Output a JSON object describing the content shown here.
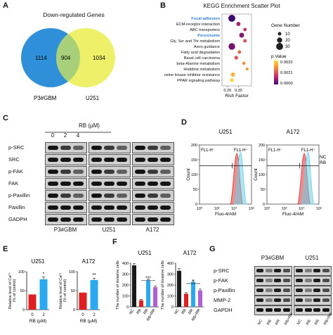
{
  "panels": {
    "A": {
      "label": "A",
      "title": "Down-regulated Genes",
      "left_count": "1114",
      "overlap_count": "904",
      "right_count": "1034",
      "left_name": "P3#GBM",
      "right_name": "U251",
      "left_color": "#2f8fd8",
      "right_color": "#eef06a",
      "overlap_color": "#a8d07a"
    },
    "B": {
      "label": "B",
      "title": "KEGG Enrichment Scatter Plot",
      "xlabel": "Rich Factor",
      "legend_size_title": "Gene Number",
      "legend_color_title": "p Value",
      "size_legend": [
        "10",
        "20",
        "30"
      ],
      "color_ticks": [
        "0.0032",
        "0.0021",
        "0.0000"
      ],
      "chart_data": {
        "type": "scatter",
        "xlim": [
          0.15,
          0.42
        ],
        "x_ticks": [
          "0.20",
          "0.30"
        ],
        "terms": [
          {
            "name": "Focal adhesion",
            "x": 0.24,
            "size": 30,
            "p": 0.0,
            "highlight": true
          },
          {
            "name": "ECM-receptor interaction",
            "x": 0.3,
            "size": 14,
            "p": 0.0008,
            "highlight": false
          },
          {
            "name": "ABC transporters",
            "x": 0.36,
            "size": 10,
            "p": 0.0012,
            "highlight": false
          },
          {
            "name": "Peroxisome",
            "x": 0.33,
            "size": 18,
            "p": 0.0005,
            "highlight": true
          },
          {
            "name": "Gly, Ser and Thr metabolism",
            "x": 0.36,
            "size": 10,
            "p": 0.0015,
            "highlight": false
          },
          {
            "name": "Axon guidance",
            "x": 0.24,
            "size": 28,
            "p": 0.0004,
            "highlight": false
          },
          {
            "name": "Fatty acid degradation",
            "x": 0.31,
            "size": 10,
            "p": 0.0018,
            "highlight": false
          },
          {
            "name": "Basal cell carcinoma",
            "x": 0.28,
            "size": 12,
            "p": 0.0016,
            "highlight": false
          },
          {
            "name": "beta-Alanine metabolism",
            "x": 0.35,
            "size": 8,
            "p": 0.0022,
            "highlight": false
          },
          {
            "name": "Histidine metabolism",
            "x": 0.38,
            "size": 7,
            "p": 0.0024,
            "highlight": false
          },
          {
            "name": "EGFR tyrosine kinase inhibitor resistance",
            "x": 0.25,
            "size": 14,
            "p": 0.0027,
            "highlight": false
          },
          {
            "name": "PPAR signaling pathway",
            "x": 0.24,
            "size": 12,
            "p": 0.0031,
            "highlight": false
          }
        ]
      }
    },
    "C": {
      "label": "C",
      "treatment": "RB (μM)",
      "doses": [
        "0",
        "2",
        "4"
      ],
      "proteins": [
        "p-SRC",
        "SRC",
        "p-FAK",
        "FAK",
        "p-Paxillin",
        "Paxillin",
        "GADPH"
      ],
      "cell_lines": [
        "P3#GBM",
        "U251",
        "A172"
      ]
    },
    "D": {
      "label": "D",
      "plots": [
        {
          "title": "U251",
          "gate_left": "FL1-H⁻",
          "gate_right": "FL1-H⁺"
        },
        {
          "title": "A172",
          "gate_left": "FL1-H⁻",
          "gate_right": "FL1-H⁺"
        }
      ],
      "ylabel": "Count",
      "xlabel": "Fluo-4/AM",
      "y_ticks": [
        "0",
        "50",
        "100",
        "150",
        "200"
      ],
      "x_ticks": [
        "10⁰",
        "10²",
        "10⁴",
        "10⁶"
      ],
      "legend": [
        {
          "name": "NC",
          "color": "#e03030"
        },
        {
          "name": "RB",
          "color": "#6ad0e8"
        }
      ]
    },
    "E": {
      "label": "E",
      "ylabel_line1": "Relative level of Ca²⁺",
      "ylabel_line2": "(% of control)",
      "xlabel": "RB (μM)",
      "chart_data": [
        {
          "type": "bar",
          "title": "U251",
          "categories": [
            "0",
            "2"
          ],
          "values": [
            40,
            80
          ],
          "errors": [
            0,
            6
          ],
          "ylim": [
            0,
            100
          ],
          "y_ticks": [
            "0",
            "50",
            "100"
          ],
          "sig": "*",
          "colors": [
            "#e02020",
            "#2aa8f0"
          ]
        },
        {
          "type": "bar",
          "title": "A172",
          "categories": [
            "0",
            "2"
          ],
          "values": [
            45,
            78
          ],
          "errors": [
            0,
            5
          ],
          "ylim": [
            0,
            100
          ],
          "y_ticks": [
            "0",
            "50",
            "100"
          ],
          "sig": "**",
          "colors": [
            "#e02020",
            "#2aa8f0"
          ]
        }
      ]
    },
    "F": {
      "label": "F",
      "ylabel": "The number of invasive cells",
      "chart_data": [
        {
          "type": "bar",
          "title": "U251",
          "categories": [
            "NC",
            "RB",
            "RR",
            "RB+RR"
          ],
          "values": [
            380,
            60,
            240,
            180
          ],
          "errors": [
            15,
            8,
            15,
            12
          ],
          "ylim": [
            0,
            400
          ],
          "y_ticks": [
            "0",
            "100",
            "200",
            "300",
            "400"
          ],
          "sig": "***",
          "colors": [
            "#1a1a1a",
            "#e02020",
            "#2aa8f0",
            "#b060d0"
          ]
        },
        {
          "type": "bar",
          "title": "A172",
          "categories": [
            "NC",
            "RB",
            "RR",
            "RB+RR"
          ],
          "values": [
            330,
            120,
            230,
            150
          ],
          "errors": [
            20,
            10,
            15,
            12
          ],
          "ylim": [
            0,
            400
          ],
          "y_ticks": [
            "0",
            "100",
            "200",
            "300",
            "400"
          ],
          "sig": "*",
          "colors": [
            "#1a1a1a",
            "#e02020",
            "#2aa8f0",
            "#b060d0"
          ]
        }
      ]
    },
    "G": {
      "label": "G",
      "cell_lines": [
        "P3#GBM",
        "U251"
      ],
      "proteins": [
        "p-SRC",
        "p-FAK",
        "p-Paxillin",
        "MMP-2",
        "GAPDH"
      ],
      "lanes": [
        "NC",
        "RB",
        "RR",
        "RB+RR"
      ]
    }
  }
}
